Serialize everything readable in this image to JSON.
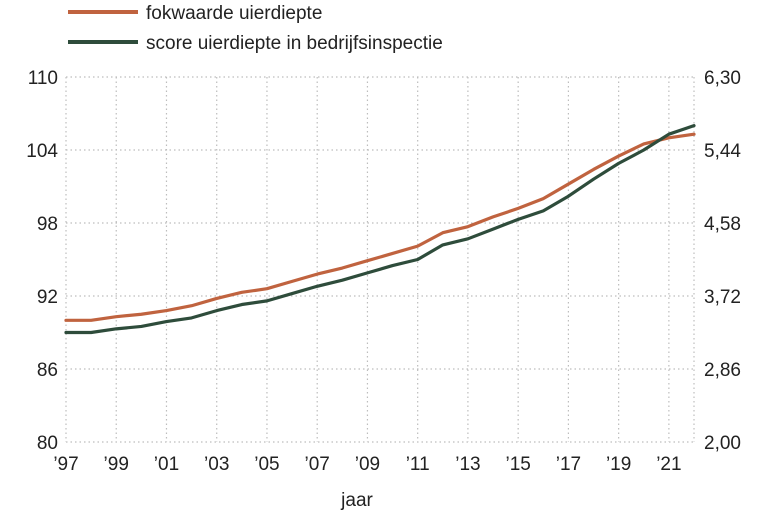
{
  "chart_data": {
    "type": "line",
    "title": "",
    "xlabel": "jaar",
    "ylabel_left": "",
    "ylabel_right": "",
    "x": [
      1997,
      1998,
      1999,
      2000,
      2001,
      2002,
      2003,
      2004,
      2005,
      2006,
      2007,
      2008,
      2009,
      2010,
      2011,
      2012,
      2013,
      2014,
      2015,
      2016,
      2017,
      2018,
      2019,
      2020,
      2021,
      2022
    ],
    "x_tick_labels": [
      "’97",
      "’99",
      "’01",
      "’03",
      "’05",
      "’07",
      "’09",
      "’11",
      "’13",
      "’15",
      "’17",
      "’19",
      "’21"
    ],
    "x_tick_values": [
      1997,
      1999,
      2001,
      2003,
      2005,
      2007,
      2009,
      2011,
      2013,
      2015,
      2017,
      2019,
      2021
    ],
    "xlim": [
      1997,
      2022
    ],
    "left_axis": {
      "ylim": [
        80,
        110
      ],
      "ticks": [
        "80",
        "86",
        "92",
        "98",
        "104",
        "110"
      ],
      "tick_values": [
        80,
        86,
        92,
        98,
        104,
        110
      ]
    },
    "right_axis": {
      "ylim": [
        2.0,
        6.3
      ],
      "ticks": [
        "2,00",
        "2,86",
        "3,72",
        "4,58",
        "5,44",
        "6,30"
      ]
    },
    "grid": true,
    "legend_position": "top-left",
    "series": [
      {
        "name": "fokwaarde uierdiepte",
        "axis": "left",
        "color": "#c0633f",
        "values": [
          90.0,
          90.0,
          90.3,
          90.5,
          90.8,
          91.2,
          91.8,
          92.3,
          92.6,
          93.2,
          93.8,
          94.3,
          94.9,
          95.5,
          96.1,
          97.2,
          97.7,
          98.5,
          99.2,
          100.0,
          101.2,
          102.4,
          103.5,
          104.5,
          105.0,
          105.3
        ]
      },
      {
        "name": "score uierdiepte in bedrijfsinspectie",
        "axis": "left",
        "color": "#2e4c3b",
        "values": [
          89.0,
          89.0,
          89.3,
          89.5,
          89.9,
          90.2,
          90.8,
          91.3,
          91.6,
          92.2,
          92.8,
          93.3,
          93.9,
          94.5,
          95.0,
          96.2,
          96.7,
          97.5,
          98.3,
          99.0,
          100.2,
          101.6,
          102.9,
          104.0,
          105.3,
          106.0
        ]
      }
    ]
  },
  "colors": {
    "grid": "#bdbdbd",
    "axis": "#555555"
  }
}
